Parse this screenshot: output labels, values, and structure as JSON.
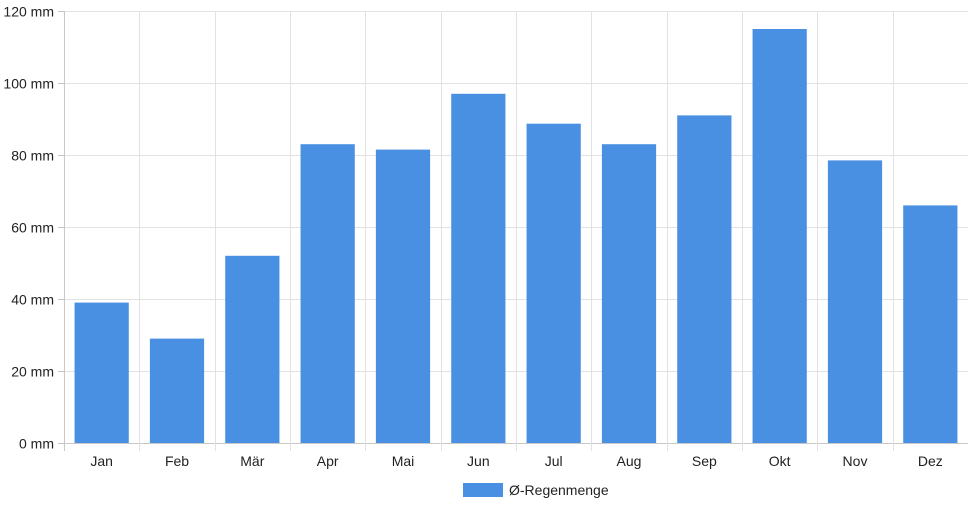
{
  "chart_data": {
    "type": "bar",
    "categories": [
      "Jan",
      "Feb",
      "Mär",
      "Apr",
      "Mai",
      "Jun",
      "Jul",
      "Aug",
      "Sep",
      "Okt",
      "Nov",
      "Dez"
    ],
    "series": [
      {
        "name": "Ø-Regenmenge",
        "values": [
          39,
          29,
          52,
          83,
          81.5,
          97,
          88.7,
          83,
          91,
          115,
          78.5,
          66
        ]
      }
    ],
    "ylim": [
      0,
      120
    ],
    "yticks": [
      0,
      20,
      40,
      60,
      80,
      100,
      120
    ],
    "yunit": "mm",
    "grid": true,
    "legend": "bottom-center",
    "colors": {
      "bar": "#4a90e2",
      "grid": "#e2e2e2",
      "axis": "#c8c8c8"
    }
  }
}
